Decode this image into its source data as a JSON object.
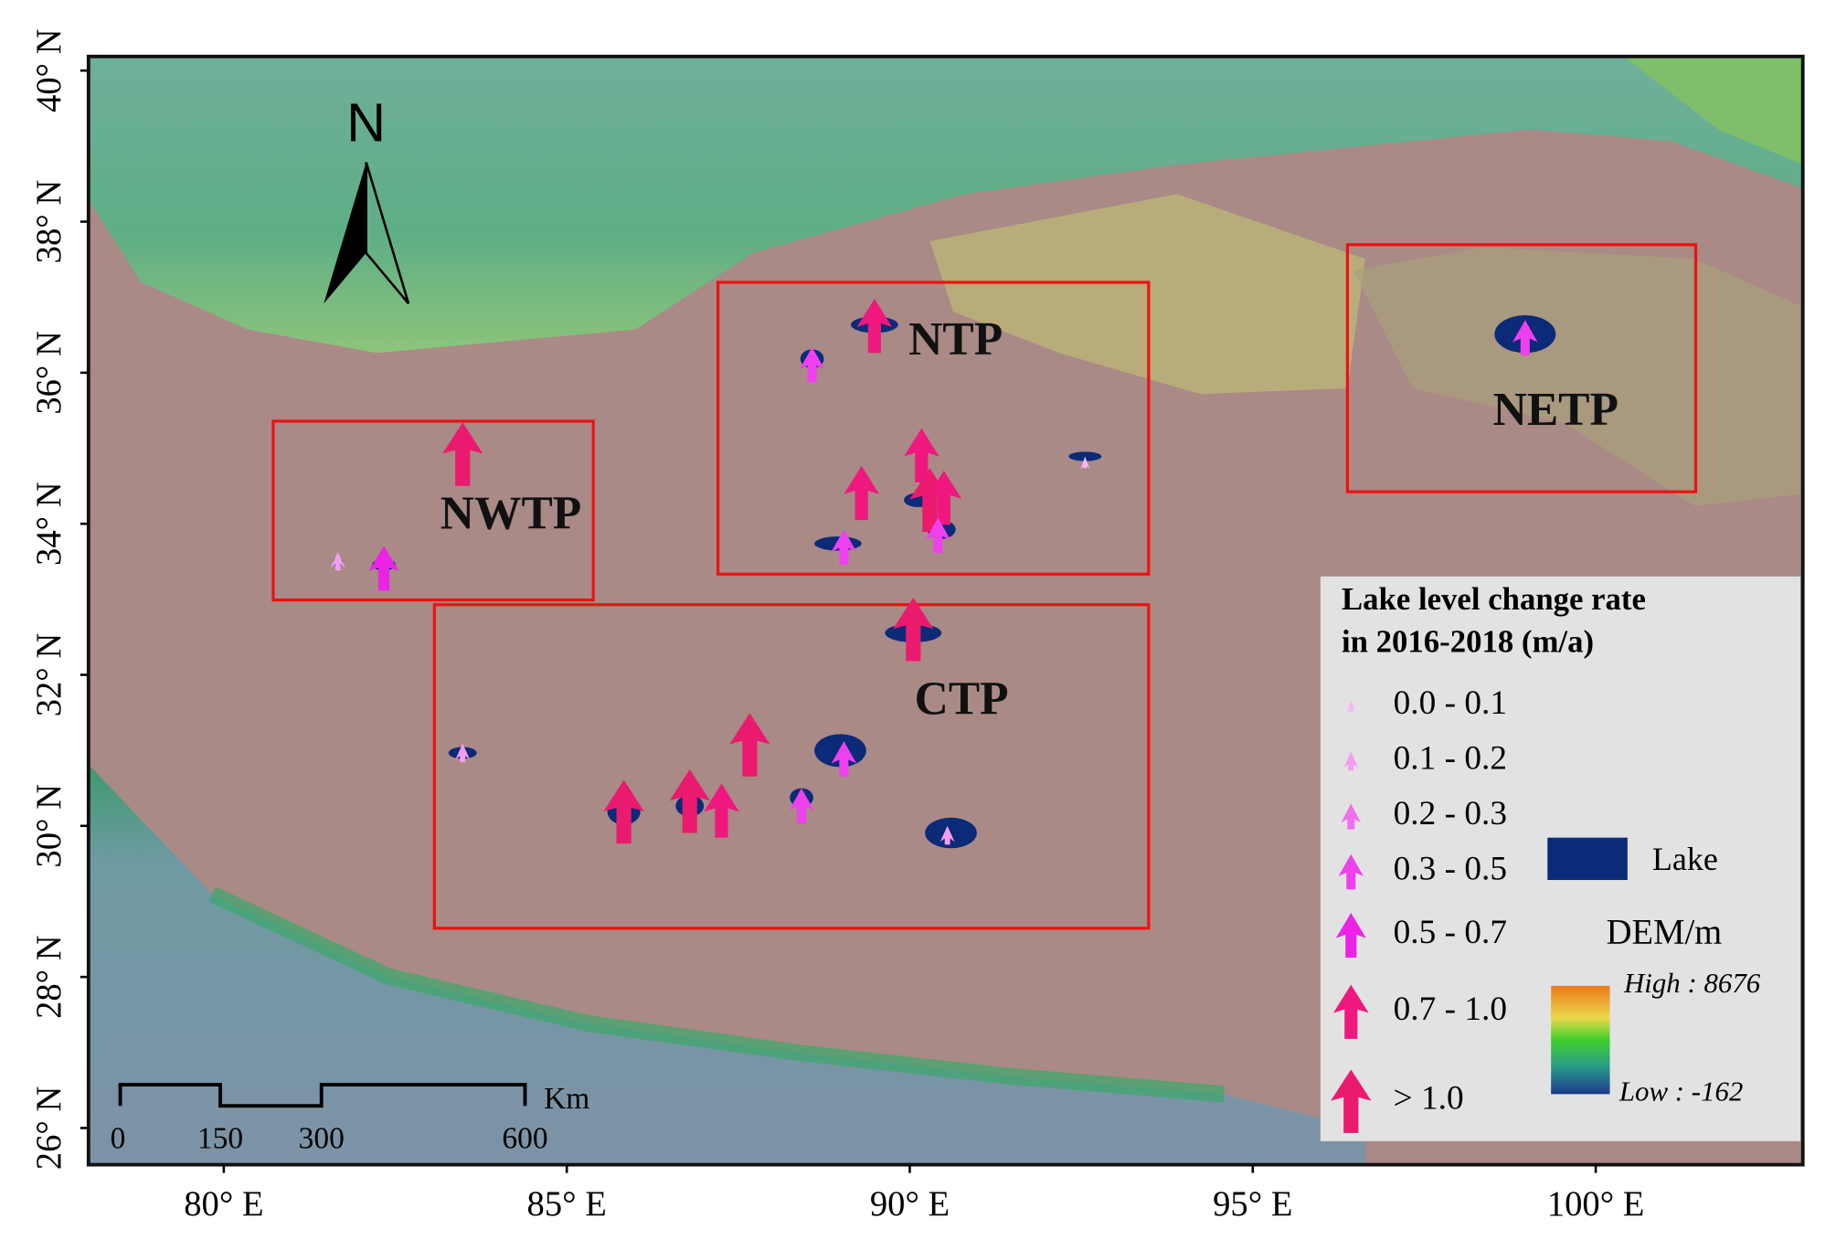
{
  "map": {
    "latitude_labels": [
      "40° N",
      "38° N",
      "36° N",
      "34° N",
      "32° N",
      "30° N",
      "28° N",
      "26° N"
    ],
    "longitude_labels": [
      "80° E",
      "85° E",
      "90° E",
      "95° E",
      "100° E"
    ],
    "north_label": "N",
    "regions": [
      {
        "label": "NWTP"
      },
      {
        "label": "NTP"
      },
      {
        "label": "NETP"
      },
      {
        "label": "CTP"
      }
    ],
    "scale_bar": {
      "labels": [
        "0",
        "150",
        "300",
        "600"
      ],
      "unit": "Km"
    },
    "legend": {
      "title_lines": [
        "Lake level change rate",
        "in 2016-2018 (m/a)"
      ],
      "classes": [
        "0.0 - 0.1",
        "0.1 - 0.2",
        "0.2 - 0.3",
        "0.3 - 0.5",
        "0.5 - 0.7",
        "0.7 - 1.0",
        "> 1.0"
      ],
      "lake_label": "Lake",
      "dem_label": "DEM/m",
      "dem_high": "High : 8676",
      "dem_low": "Low : -162"
    }
  }
}
